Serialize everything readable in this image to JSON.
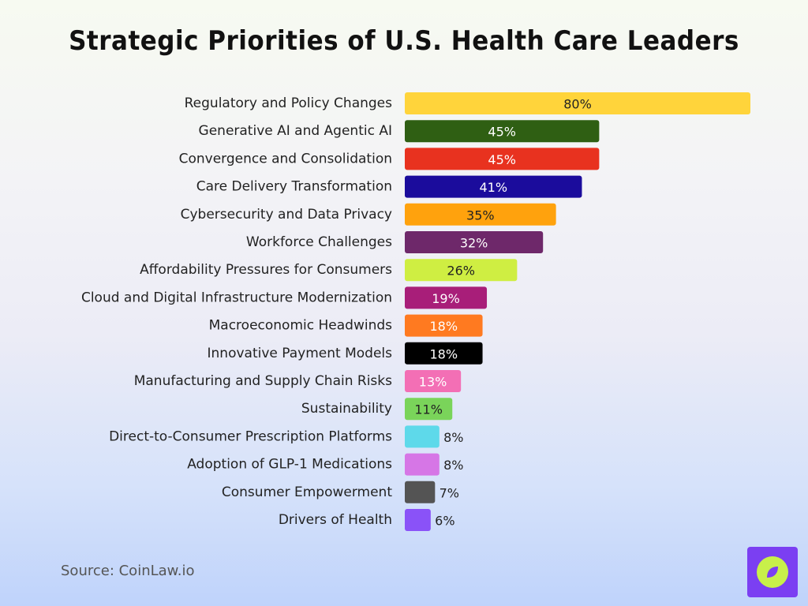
{
  "title": "Strategic Priorities of U.S. Health Care Leaders",
  "source": "Source: CoinLaw.io",
  "logo_icon": "compass-icon",
  "colors": {
    "logo_bg": "#7b3ff2",
    "logo_circle": "#c8f04a"
  },
  "chart_data": {
    "type": "bar",
    "orientation": "horizontal",
    "title": "Strategic Priorities of U.S. Health Care Leaders",
    "xlabel": "",
    "ylabel": "",
    "xlim": [
      0,
      100
    ],
    "grid": false,
    "categories": [
      "Regulatory and Policy Changes",
      "Generative AI and Agentic AI",
      "Convergence and Consolidation",
      "Care Delivery Transformation",
      "Cybersecurity and Data Privacy",
      "Workforce Challenges",
      "Affordability Pressures for Consumers",
      "Cloud and Digital Infrastructure Modernization",
      "Macroeconomic Headwinds",
      "Innovative Payment Models",
      "Manufacturing and Supply Chain Risks",
      "Sustainability",
      "Direct-to-Consumer Prescription Platforms",
      "Adoption of GLP-1 Medications",
      "Consumer Empowerment",
      "Drivers of Health"
    ],
    "values": [
      80,
      45,
      45,
      41,
      35,
      32,
      26,
      19,
      18,
      18,
      13,
      11,
      8,
      8,
      7,
      6
    ],
    "value_labels": [
      "80%",
      "45%",
      "45%",
      "41%",
      "35%",
      "32%",
      "26%",
      "19%",
      "18%",
      "18%",
      "13%",
      "11%",
      "8%",
      "8%",
      "7%",
      "6%"
    ],
    "bar_colors": [
      "#ffd43b",
      "#2f5f13",
      "#e8321f",
      "#1b0c9c",
      "#ffa20d",
      "#6e286a",
      "#cfee42",
      "#a81e79",
      "#ff7a20",
      "#000000",
      "#f36fb5",
      "#7ad45a",
      "#5ed9ea",
      "#d676e6",
      "#545454",
      "#8a52f8"
    ],
    "label_colors": [
      "#222222",
      "#ffffff",
      "#ffffff",
      "#ffffff",
      "#222222",
      "#ffffff",
      "#222222",
      "#ffffff",
      "#ffffff",
      "#ffffff",
      "#ffffff",
      "#222222",
      "#222222",
      "#ffffff",
      "#ffffff",
      "#222222"
    ]
  }
}
